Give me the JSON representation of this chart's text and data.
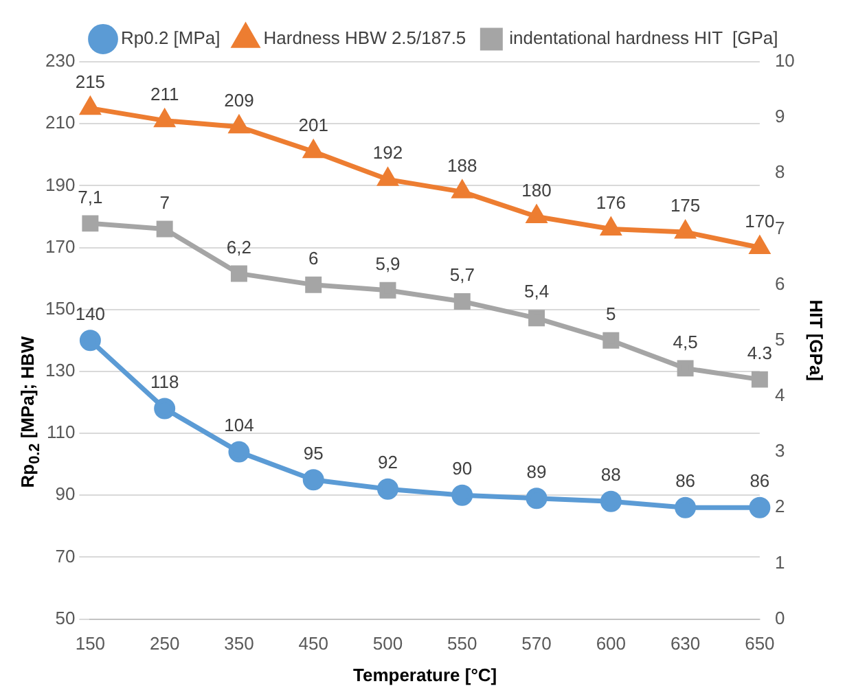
{
  "chart_data": {
    "type": "line",
    "categories": [
      "150",
      "250",
      "350",
      "450",
      "500",
      "550",
      "570",
      "600",
      "630",
      "650"
    ],
    "xlabel": "Temperature [°C]",
    "ylabel": "Rp$_{0.2}$ [MPa];  HBW",
    "y2label": "HIT [GPa]",
    "ylim": [
      50,
      230
    ],
    "yticks": [
      50,
      70,
      90,
      110,
      130,
      150,
      170,
      190,
      210,
      230
    ],
    "y2lim": [
      0,
      10
    ],
    "y2ticks": [
      0,
      1,
      2,
      3,
      4,
      5,
      6,
      7,
      8,
      9,
      10
    ],
    "grid": "y",
    "legend": "top",
    "line_style": "solid",
    "series": [
      {
        "name": "Rp0.2 [MPa]",
        "color": "#5b9bd5",
        "marker": "circle",
        "values": [
          140,
          118,
          104,
          95,
          92,
          90,
          89,
          88,
          86,
          86
        ],
        "value_labels": [
          "140",
          "118",
          "104",
          "95",
          "92",
          "90",
          "89",
          "88",
          "86",
          "86"
        ]
      },
      {
        "name": "Hardness HBW 2.5/187.5",
        "color": "#ed7d31",
        "marker": "triangle",
        "values": [
          215,
          211,
          209,
          201,
          192,
          188,
          180,
          176,
          175,
          170
        ],
        "value_labels": [
          "215",
          "211",
          "209",
          "201",
          "192",
          "188",
          "180",
          "176",
          "175",
          "170"
        ]
      },
      {
        "name": "indentational hardness HIT  [GPa]",
        "color": "#a5a5a5",
        "marker": "square",
        "axis": "y2",
        "values": [
          7.1,
          7,
          6.2,
          6,
          5.9,
          5.7,
          5.4,
          5,
          4.5,
          4.3
        ],
        "value_labels": [
          "7,1",
          "7",
          "6,2",
          "6",
          "5,9",
          "5,7",
          "5,4",
          "5",
          "4,5",
          "4.3"
        ]
      }
    ]
  }
}
